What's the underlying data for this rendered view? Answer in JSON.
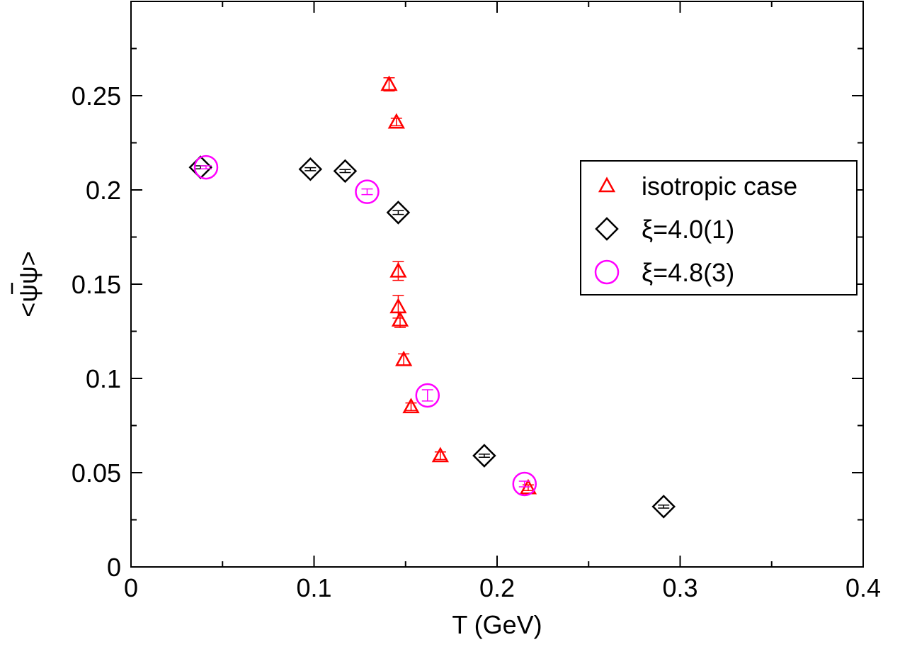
{
  "chart_data": {
    "type": "scatter",
    "xlabel": "T (GeV)",
    "ylabel": "<ψψ>",
    "ylabel_bar_over": "ψ",
    "xlim": [
      0,
      0.4
    ],
    "ylim": [
      0,
      0.3
    ],
    "x_ticks": [
      0,
      0.1,
      0.2,
      0.3,
      0.4
    ],
    "x_tick_labels": [
      "0",
      "0.1",
      "0.2",
      "0.3",
      "0.4"
    ],
    "y_ticks": [
      0,
      0.05,
      0.1,
      0.15,
      0.2,
      0.25
    ],
    "y_tick_labels": [
      "0",
      "0.05",
      "0.1",
      "0.15",
      "0.2",
      "0.25"
    ],
    "grid": false,
    "legend_position": "right",
    "series": [
      {
        "name": "isotropic case",
        "marker": "triangle",
        "color": "#ff0000",
        "points": [
          {
            "x": 0.141,
            "y": 0.256,
            "err": 0.0035
          },
          {
            "x": 0.145,
            "y": 0.236,
            "err": 0.002
          },
          {
            "x": 0.146,
            "y": 0.157,
            "err": 0.005
          },
          {
            "x": 0.146,
            "y": 0.138,
            "err": 0.006
          },
          {
            "x": 0.147,
            "y": 0.131,
            "err": 0.004
          },
          {
            "x": 0.149,
            "y": 0.11,
            "err": 0.003
          },
          {
            "x": 0.153,
            "y": 0.085,
            "err": 0.002
          },
          {
            "x": 0.169,
            "y": 0.059,
            "err": 0.002
          },
          {
            "x": 0.217,
            "y": 0.042,
            "err": 0.0015
          }
        ]
      },
      {
        "name": "ξ=4.0(1)",
        "marker": "diamond",
        "color": "#000000",
        "points": [
          {
            "x": 0.038,
            "y": 0.212,
            "err": 0.0008
          },
          {
            "x": 0.098,
            "y": 0.211,
            "err": 0.0008
          },
          {
            "x": 0.117,
            "y": 0.21,
            "err": 0.0008
          },
          {
            "x": 0.146,
            "y": 0.188,
            "err": 0.001
          },
          {
            "x": 0.193,
            "y": 0.059,
            "err": 0.0008
          },
          {
            "x": 0.291,
            "y": 0.032,
            "err": 0.0008
          }
        ]
      },
      {
        "name": "ξ=4.8(3)",
        "marker": "circle",
        "color": "#ff00ff",
        "points": [
          {
            "x": 0.041,
            "y": 0.212,
            "err": 0.0008
          },
          {
            "x": 0.129,
            "y": 0.199,
            "err": 0.0015
          },
          {
            "x": 0.162,
            "y": 0.091,
            "err": 0.003
          },
          {
            "x": 0.215,
            "y": 0.044,
            "err": 0.0015
          }
        ]
      }
    ]
  }
}
